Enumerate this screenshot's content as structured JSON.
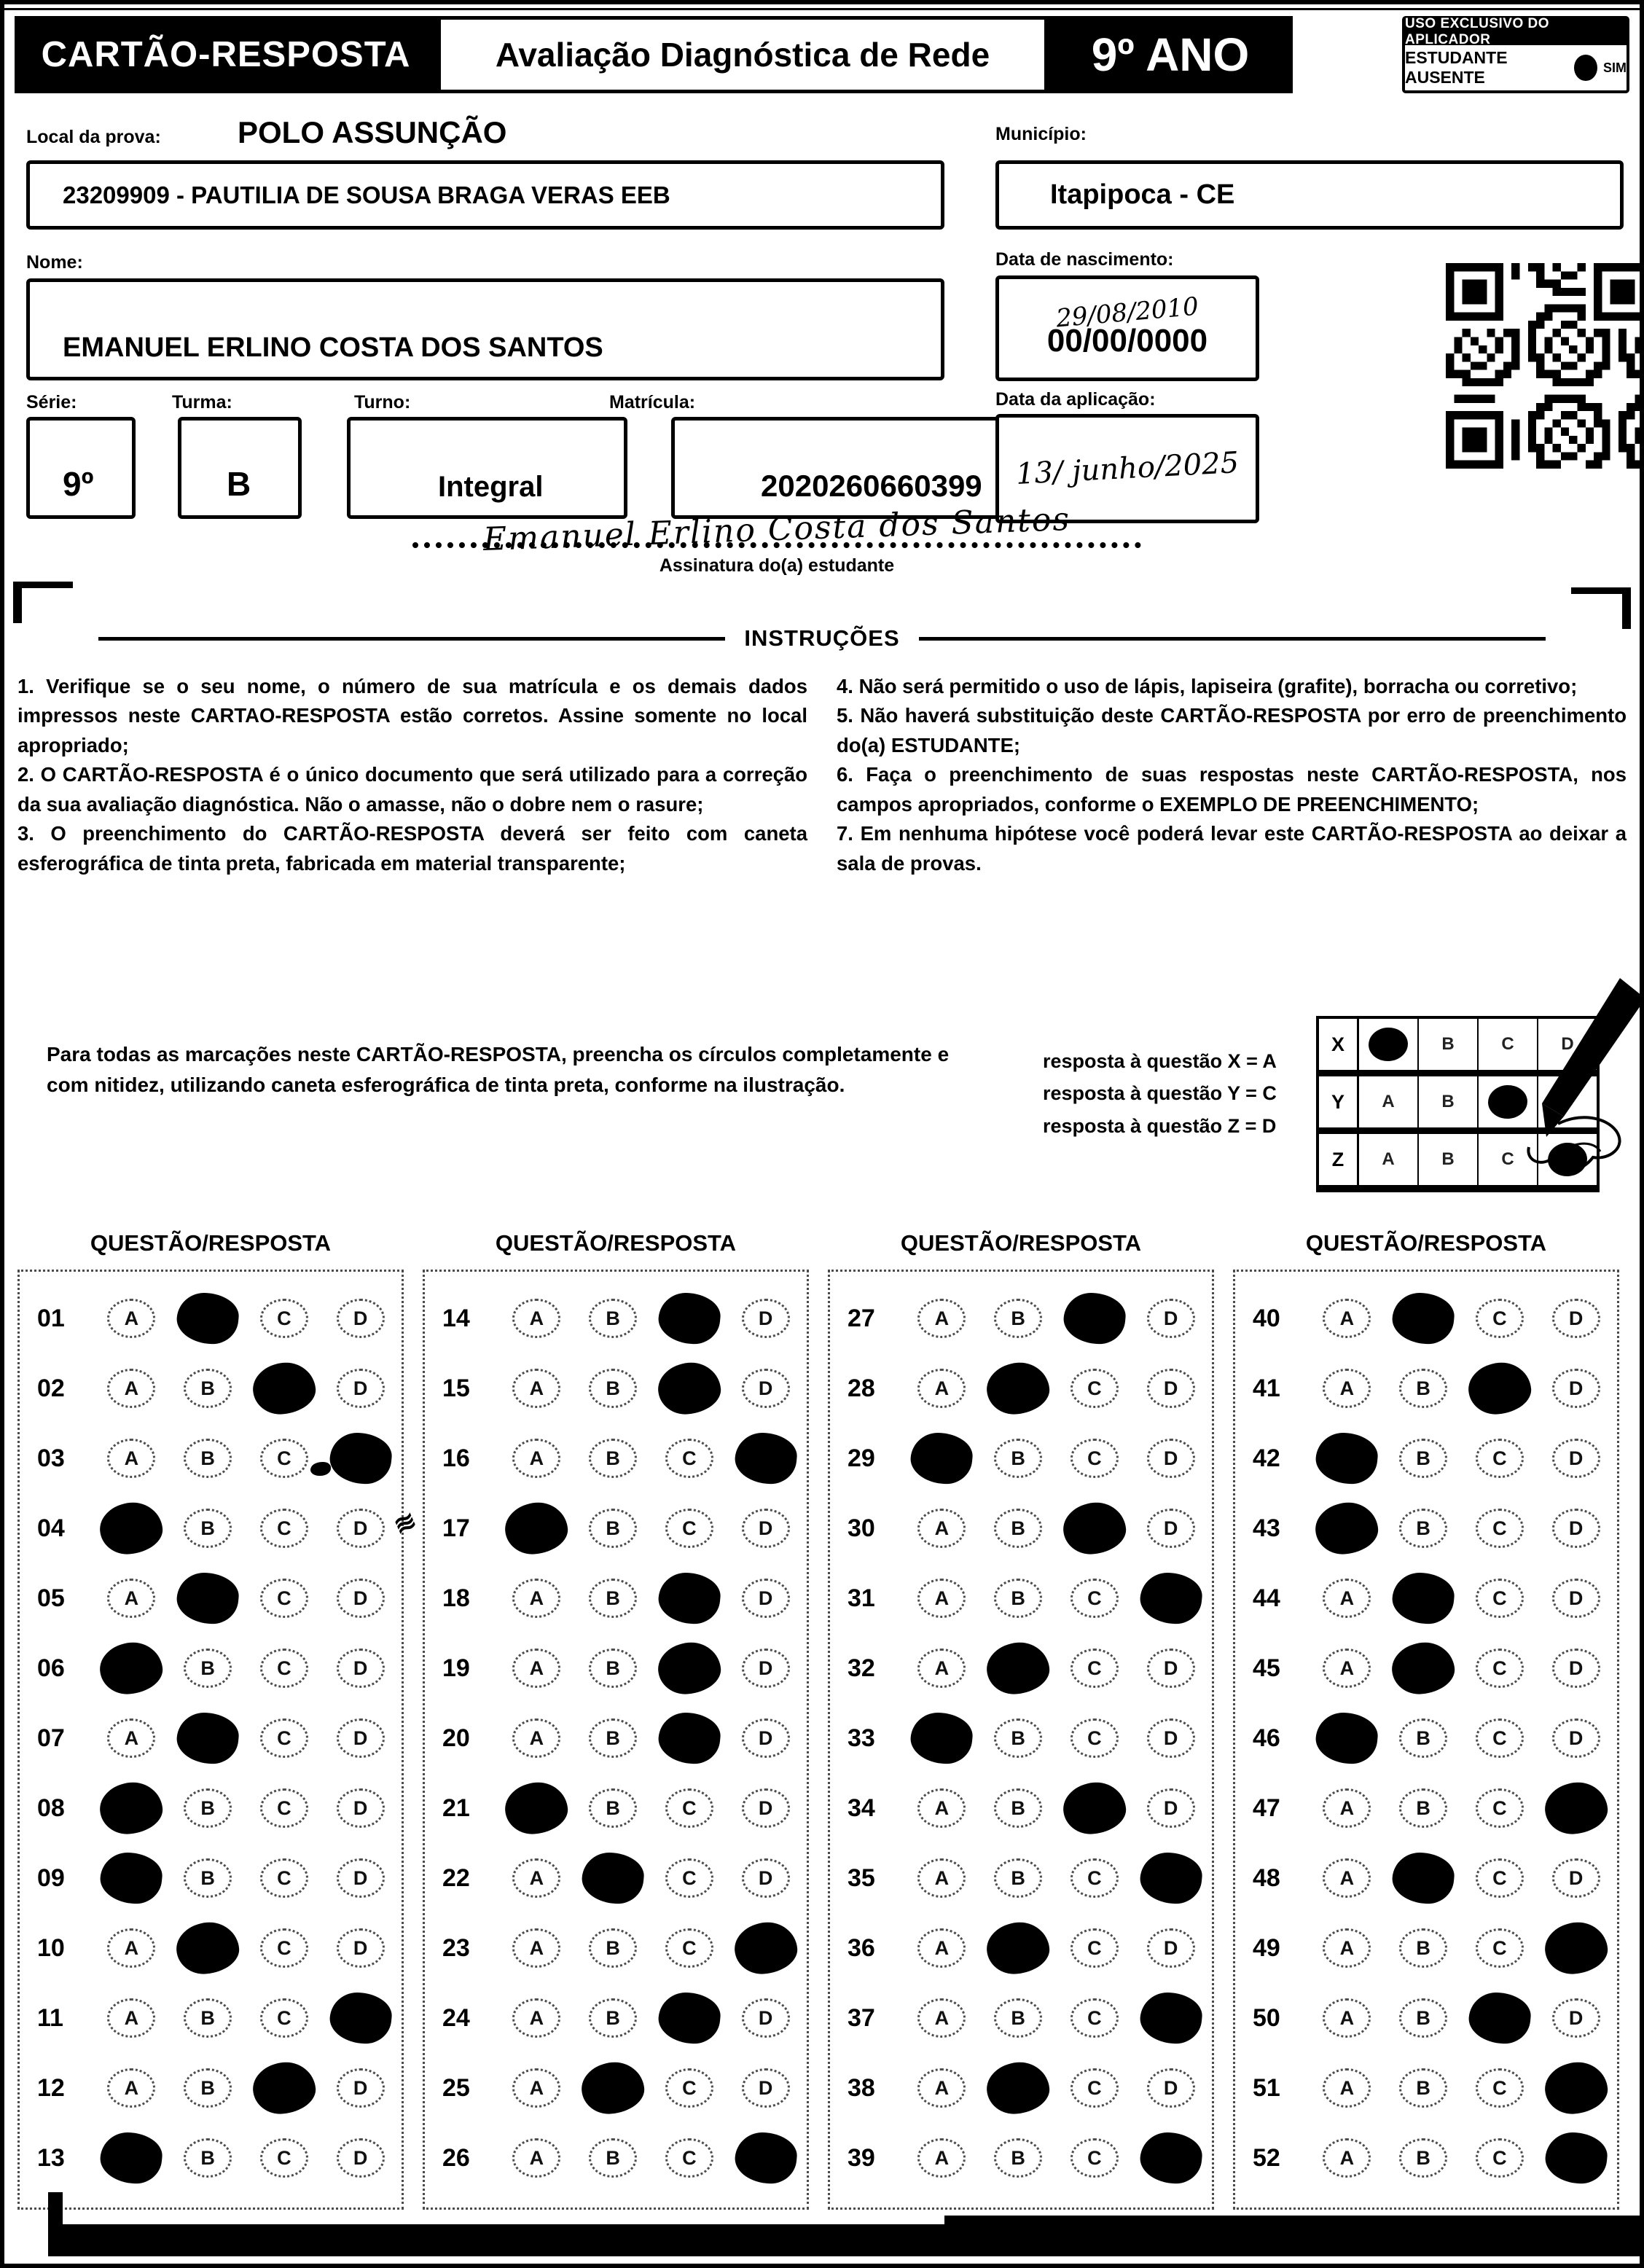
{
  "header": {
    "card_title": "CARTÃO-RESPOSTA",
    "exam_title": "Avaliação Diagnóstica de Rede",
    "grade": "9º ANO",
    "aplicador_title": "USO EXCLUSIVO DO APLICADOR",
    "absent_label": "ESTUDANTE AUSENTE",
    "absent_yes": "SIM"
  },
  "fields": {
    "local_label": "Local da prova:",
    "local_value": "POLO ASSUNÇÃO",
    "school_value": "23209909 - PAUTILIA DE SOUSA BRAGA VERAS EEB",
    "municipio_label": "Município:",
    "municipio_value": "Itapipoca - CE",
    "nome_label": "Nome:",
    "nome_value": "EMANUEL ERLINO COSTA DOS SANTOS",
    "nascimento_label": "Data de nascimento:",
    "nascimento_handwritten": "29/08/2010",
    "nascimento_printed": "00/00/0000",
    "serie_label": "Série:",
    "serie_value": "9º",
    "turma_label": "Turma:",
    "turma_value": "B",
    "turno_label": "Turno:",
    "turno_value": "Integral",
    "matricula_label": "Matrícula:",
    "matricula_value": "2020260660399",
    "aplicacao_label": "Data da aplicação:",
    "aplicacao_handwritten": "13/ junho/2025",
    "assinatura_handwritten": "Emanuel Erlino Costa dos Santos",
    "assinatura_label": "Assinatura do(a) estudante"
  },
  "instructions": {
    "title": "INSTRUÇÕES",
    "left": [
      "1. Verifique se o seu nome, o número de sua matrícula e os demais dados impressos neste CARTAO-RESPOSTA estão corretos. Assine somente no local apropriado;",
      "2. O CARTÃO-RESPOSTA é o único documento que será utilizado para a correção da sua avaliação diagnóstica. Não o amasse, não o dobre nem o rasure;",
      "3. O preenchimento do CARTÃO-RESPOSTA deverá ser feito com caneta esferográfica de tinta preta, fabricada em material transparente;"
    ],
    "right": [
      "4. Não será permitido o uso de lápis, lapiseira (grafite), borracha ou corretivo;",
      "5. Não haverá substituição deste CARTÃO-RESPOSTA por erro de preenchimento do(a) ESTUDANTE;",
      "6. Faça o preenchimento de suas respostas neste CARTÃO-RESPOSTA, nos campos apropriados, conforme o EXEMPLO DE PREENCHIMENTO;",
      "7. Em nenhuma hipótese você poderá levar este CARTÃO-RESPOSTA ao deixar a sala de provas."
    ]
  },
  "example": {
    "note": "Para todas as marcações neste CARTÃO-RESPOSTA, preencha os círculos completamente e com nitidez, utilizando caneta esferográfica de tinta preta, conforme na ilustração.",
    "legend": [
      "resposta à questão X = A",
      "resposta à questão Y = C",
      "resposta à questão Z = D"
    ],
    "grid": {
      "options": [
        "A",
        "B",
        "C",
        "D"
      ],
      "rows": [
        {
          "label": "X",
          "marked": "A"
        },
        {
          "label": "Y",
          "marked": "C"
        },
        {
          "label": "Z",
          "marked": "D"
        }
      ]
    }
  },
  "answers": {
    "column_header": "QUESTÃO/RESPOSTA",
    "options": [
      "A",
      "B",
      "C",
      "D"
    ],
    "columns": [
      [
        {
          "q": "01",
          "marked": "B"
        },
        {
          "q": "02",
          "marked": "C"
        },
        {
          "q": "03",
          "marked": "D",
          "smudge": "D"
        },
        {
          "q": "04",
          "marked": "A"
        },
        {
          "q": "05",
          "marked": "B"
        },
        {
          "q": "06",
          "marked": "A"
        },
        {
          "q": "07",
          "marked": "B"
        },
        {
          "q": "08",
          "marked": "A"
        },
        {
          "q": "09",
          "marked": "A"
        },
        {
          "q": "10",
          "marked": "B"
        },
        {
          "q": "11",
          "marked": "D"
        },
        {
          "q": "12",
          "marked": "C"
        },
        {
          "q": "13",
          "marked": "A"
        }
      ],
      [
        {
          "q": "14",
          "marked": "C"
        },
        {
          "q": "15",
          "marked": "C"
        },
        {
          "q": "16",
          "marked": "D"
        },
        {
          "q": "17",
          "marked": "A",
          "scribble": true
        },
        {
          "q": "18",
          "marked": "C"
        },
        {
          "q": "19",
          "marked": "C"
        },
        {
          "q": "20",
          "marked": "C"
        },
        {
          "q": "21",
          "marked": "A"
        },
        {
          "q": "22",
          "marked": "B"
        },
        {
          "q": "23",
          "marked": "D"
        },
        {
          "q": "24",
          "marked": "C"
        },
        {
          "q": "25",
          "marked": "B"
        },
        {
          "q": "26",
          "marked": "D"
        }
      ],
      [
        {
          "q": "27",
          "marked": "C"
        },
        {
          "q": "28",
          "marked": "B"
        },
        {
          "q": "29",
          "marked": "A"
        },
        {
          "q": "30",
          "marked": "C"
        },
        {
          "q": "31",
          "marked": "D"
        },
        {
          "q": "32",
          "marked": "B"
        },
        {
          "q": "33",
          "marked": "A"
        },
        {
          "q": "34",
          "marked": "C"
        },
        {
          "q": "35",
          "marked": "D"
        },
        {
          "q": "36",
          "marked": "B"
        },
        {
          "q": "37",
          "marked": "D"
        },
        {
          "q": "38",
          "marked": "B"
        },
        {
          "q": "39",
          "marked": "D"
        }
      ],
      [
        {
          "q": "40",
          "marked": "B"
        },
        {
          "q": "41",
          "marked": "C"
        },
        {
          "q": "42",
          "marked": "A"
        },
        {
          "q": "43",
          "marked": "A"
        },
        {
          "q": "44",
          "marked": "B"
        },
        {
          "q": "45",
          "marked": "B"
        },
        {
          "q": "46",
          "marked": "A"
        },
        {
          "q": "47",
          "marked": "D"
        },
        {
          "q": "48",
          "marked": "B"
        },
        {
          "q": "49",
          "marked": "D"
        },
        {
          "q": "50",
          "marked": "C"
        },
        {
          "q": "51",
          "marked": "D"
        },
        {
          "q": "52",
          "marked": "D"
        }
      ]
    ]
  }
}
